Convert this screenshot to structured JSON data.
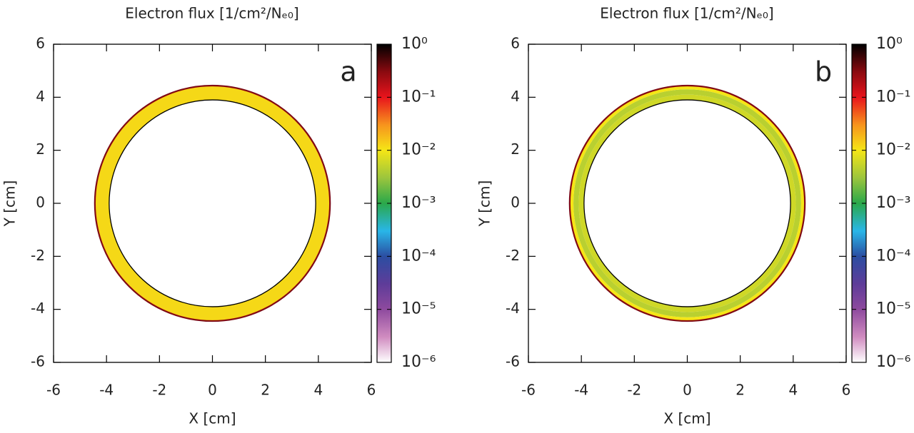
{
  "chart_data": [
    {
      "type": "heatmap",
      "title": "Electron flux [1/cm²/Nₑ₀]",
      "panel_label": "a",
      "xlabel": "X [cm]",
      "ylabel": "Y [cm]",
      "xlim": [
        -6,
        6
      ],
      "ylim": [
        -6,
        6
      ],
      "xticks": [
        -6,
        -4,
        -2,
        0,
        2,
        4,
        6
      ],
      "yticks": [
        -6,
        -4,
        -2,
        0,
        2,
        4,
        6
      ],
      "bands": [
        {
          "r_inner": 3.9,
          "r_outer": 4.45,
          "value": 0.012
        },
        {
          "r_inner": 4.41,
          "r_outer": 4.45,
          "value": 0.25
        }
      ],
      "clim": [
        1e-06,
        1
      ],
      "colorbar_log": true,
      "cticks": [
        {
          "value": 1,
          "label": "10⁰"
        },
        {
          "value": 0.1,
          "label": "10⁻¹"
        },
        {
          "value": 0.01,
          "label": "10⁻²"
        },
        {
          "value": 0.001,
          "label": "10⁻³"
        },
        {
          "value": 0.0001,
          "label": "10⁻⁴"
        },
        {
          "value": 1e-05,
          "label": "10⁻⁵"
        },
        {
          "value": 1e-06,
          "label": "10⁻⁶"
        }
      ],
      "colormap": [
        {
          "value": 1,
          "color": "#000000"
        },
        {
          "value": 0.3,
          "color": "#8b0a10"
        },
        {
          "value": 0.1,
          "color": "#e8141c"
        },
        {
          "value": 0.03,
          "color": "#f7941d"
        },
        {
          "value": 0.01,
          "color": "#f5e616"
        },
        {
          "value": 0.003,
          "color": "#9bc53d"
        },
        {
          "value": 0.001,
          "color": "#2aa84a"
        },
        {
          "value": 0.0003,
          "color": "#29b6e8"
        },
        {
          "value": 0.0001,
          "color": "#2b4ea2"
        },
        {
          "value": 3e-05,
          "color": "#5e3c99"
        },
        {
          "value": 1e-05,
          "color": "#8e4a9e"
        },
        {
          "value": 3e-06,
          "color": "#d08cc0"
        },
        {
          "value": 1e-06,
          "color": "#ffffff"
        }
      ]
    },
    {
      "type": "heatmap",
      "title": "Electron flux [1/cm²/Nₑ₀]",
      "panel_label": "b",
      "xlabel": "X [cm]",
      "ylabel": "Y [cm]",
      "xlim": [
        -6,
        6
      ],
      "ylim": [
        -6,
        6
      ],
      "xticks": [
        -6,
        -4,
        -2,
        0,
        2,
        4,
        6
      ],
      "yticks": [
        -6,
        -4,
        -2,
        0,
        2,
        4,
        6
      ],
      "bands": [
        {
          "r_inner": 3.9,
          "r_outer": 4.1,
          "value": 0.006
        },
        {
          "r_inner": 4.1,
          "r_outer": 4.3,
          "value": 0.0045
        },
        {
          "r_inner": 4.3,
          "r_outer": 4.45,
          "value": 0.01
        },
        {
          "r_inner": 4.41,
          "r_outer": 4.45,
          "value": 0.25
        }
      ],
      "clim": [
        1e-06,
        1
      ],
      "colorbar_log": true,
      "cticks": [
        {
          "value": 1,
          "label": "10⁰"
        },
        {
          "value": 0.1,
          "label": "10⁻¹"
        },
        {
          "value": 0.01,
          "label": "10⁻²"
        },
        {
          "value": 0.001,
          "label": "10⁻³"
        },
        {
          "value": 0.0001,
          "label": "10⁻⁴"
        },
        {
          "value": 1e-05,
          "label": "10⁻⁵"
        },
        {
          "value": 1e-06,
          "label": "10⁻⁶"
        }
      ],
      "colormap": [
        {
          "value": 1,
          "color": "#000000"
        },
        {
          "value": 0.3,
          "color": "#8b0a10"
        },
        {
          "value": 0.1,
          "color": "#e8141c"
        },
        {
          "value": 0.03,
          "color": "#f7941d"
        },
        {
          "value": 0.01,
          "color": "#f5e616"
        },
        {
          "value": 0.003,
          "color": "#9bc53d"
        },
        {
          "value": 0.001,
          "color": "#2aa84a"
        },
        {
          "value": 0.0003,
          "color": "#29b6e8"
        },
        {
          "value": 0.0001,
          "color": "#2b4ea2"
        },
        {
          "value": 3e-05,
          "color": "#5e3c99"
        },
        {
          "value": 1e-05,
          "color": "#8e4a9e"
        },
        {
          "value": 3e-06,
          "color": "#d08cc0"
        },
        {
          "value": 1e-06,
          "color": "#ffffff"
        }
      ]
    }
  ]
}
